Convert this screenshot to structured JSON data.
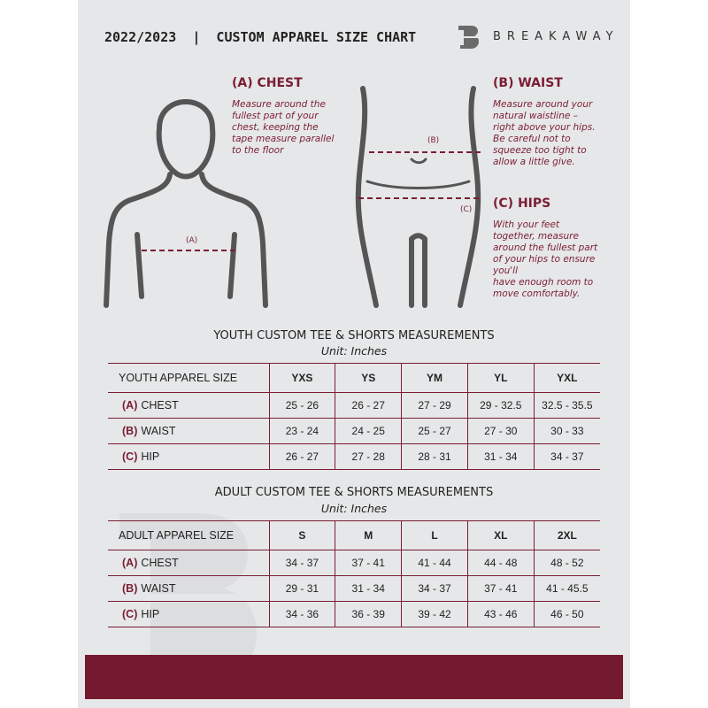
{
  "header": {
    "title": "2022/2023  |  CUSTOM APPAREL SIZE CHART",
    "brand": "BREAKAWAY",
    "logo_letter": "B"
  },
  "measures": {
    "chest": {
      "title": "(A) CHEST",
      "marker": "(A)",
      "desc": [
        "Measure around the",
        "fullest part of your",
        "chest, keeping the",
        "tape measure parallel",
        "to the floor"
      ]
    },
    "waist": {
      "title": "(B) WAIST",
      "marker": "(B)",
      "desc": [
        "Measure around your",
        "natural waistline –",
        "right above your hips.",
        "Be careful not to",
        "squeeze too tight to",
        "allow a little give."
      ]
    },
    "hips": {
      "title": "(C) HIPS",
      "marker": "(C)",
      "desc": [
        "With your feet",
        "together, measure",
        "around the fullest part",
        "of your hips to ensure",
        "you'll",
        "have enough room to",
        "move comfortably."
      ]
    }
  },
  "youth": {
    "title": "YOUTH CUSTOM TEE & SHORTS MEASUREMENTS",
    "unit": "Unit: Inches",
    "header": "YOUTH APPAREL SIZE",
    "sizes": [
      "YXS",
      "YS",
      "YM",
      "YL",
      "YXL"
    ],
    "rows": [
      {
        "letter": "(A)",
        "name": "CHEST",
        "values": [
          "25 - 26",
          "26 - 27",
          "27 - 29",
          "29 - 32.5",
          "32.5 - 35.5"
        ]
      },
      {
        "letter": "(B)",
        "name": "WAIST",
        "values": [
          "23 - 24",
          "24 - 25",
          "25 - 27",
          "27 - 30",
          "30 - 33"
        ]
      },
      {
        "letter": "(C)",
        "name": "HIP",
        "values": [
          "26 - 27",
          "27 - 28",
          "28 - 31",
          "31 - 34",
          "34 - 37"
        ]
      }
    ]
  },
  "adult": {
    "title": "ADULT CUSTOM TEE & SHORTS MEASUREMENTS",
    "unit": "Unit: Inches",
    "header": "ADULT APPAREL SIZE",
    "sizes": [
      "S",
      "M",
      "L",
      "XL",
      "2XL"
    ],
    "rows": [
      {
        "letter": "(A)",
        "name": "CHEST",
        "values": [
          "34 - 37",
          "37 - 41",
          "41 - 44",
          "44 - 48",
          "48 - 52"
        ]
      },
      {
        "letter": "(B)",
        "name": "WAIST",
        "values": [
          "29 - 31",
          "31 - 34",
          "34 - 37",
          "37 - 41",
          "41 - 45.5"
        ]
      },
      {
        "letter": "(C)",
        "name": "HIP",
        "values": [
          "34 - 36",
          "36 - 39",
          "39 - 42",
          "43 - 46",
          "46 - 50"
        ]
      }
    ]
  },
  "colors": {
    "accent": "#7a1d34",
    "background": "#e6e7e8",
    "footer": "#731a2f"
  }
}
